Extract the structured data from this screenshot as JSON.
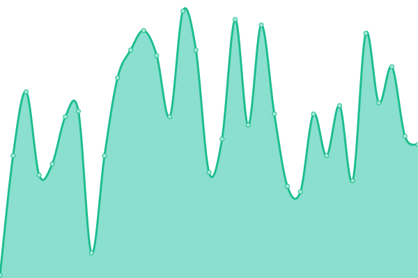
{
  "chart_data": {
    "type": "area",
    "title": "",
    "xlabel": "",
    "ylabel": "",
    "ylim": [
      0,
      100
    ],
    "grid": false,
    "legend": "none",
    "curve": "smooth",
    "x": [
      0,
      1,
      2,
      3,
      4,
      5,
      6,
      7,
      8,
      9,
      10,
      11,
      12,
      13,
      14,
      15,
      16,
      17,
      18,
      19,
      20,
      21,
      22,
      23,
      24,
      25,
      26,
      27,
      28,
      29,
      30,
      31,
      32
    ],
    "series": [
      {
        "values": [
          1,
          44,
          67,
          37,
          41,
          58,
          60,
          9,
          44,
          72,
          82,
          89,
          80,
          58,
          96,
          82,
          38,
          50,
          93,
          55,
          91,
          59,
          33,
          31,
          59,
          44,
          62,
          35,
          88,
          63,
          76,
          51,
          48
        ],
        "line_color": "#1dbd8f",
        "fill_color": "#8adfcf",
        "marker_fill": "#a6e9d8"
      }
    ]
  }
}
